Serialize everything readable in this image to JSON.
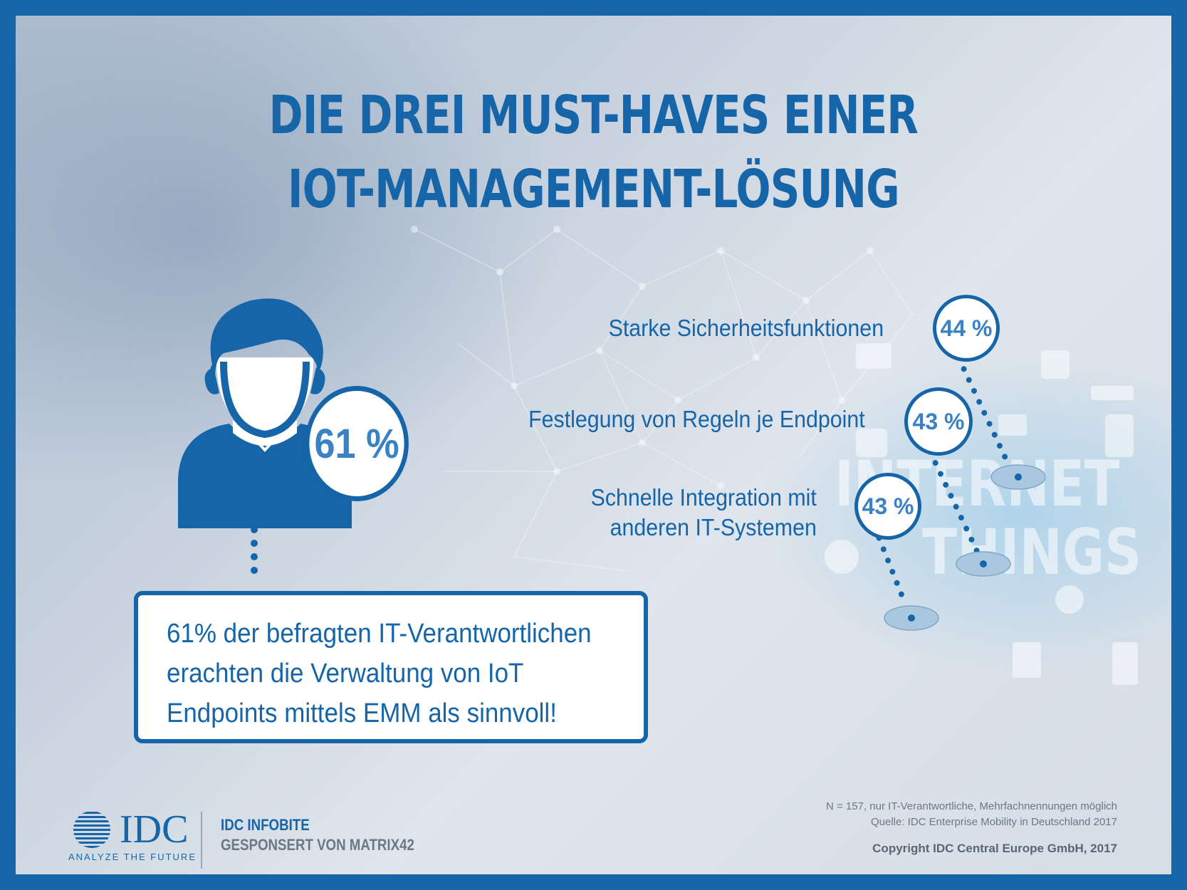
{
  "title": {
    "line1": "DIE DREI MUST-HAVES EINER",
    "line2": "IOT-MANAGEMENT-LÖSUNG"
  },
  "main_stat": {
    "value": "61 %",
    "statement_lines": [
      "61% der befragten IT-Verantwortlichen",
      "erachten die Verwaltung von IoT",
      "Endpoints mittels EMM als sinnvoll!"
    ]
  },
  "features": [
    {
      "label_lines": [
        "Starke Sicherheitsfunktionen"
      ],
      "value": "44 %"
    },
    {
      "label_lines": [
        "Festlegung von Regeln je Endpoint"
      ],
      "value": "43 %"
    },
    {
      "label_lines": [
        "Schnelle Integration mit",
        "anderen IT-Systemen"
      ],
      "value": "43 %"
    }
  ],
  "background": {
    "watermark_line1": "INTERNET",
    "watermark_line2": "THINGS"
  },
  "footer": {
    "logo_text": "IDC",
    "tagline": "ANALYZE THE FUTURE",
    "infobite": "IDC INFOBITE",
    "sponsor": "GESPONSERT VON MATRIX42",
    "sample_note": "N = 157, nur IT-Verantwortliche, Mehrfachnennungen möglich",
    "source": "Quelle: IDC Enterprise Mobility in Deutschland 2017",
    "copyright": "Copyright IDC Central Europe GmbH, 2017"
  },
  "colors": {
    "primary": "#1565a8",
    "accent_text": "#3a82c4",
    "gray_text": "#6d7785",
    "pin": "#a9c7df"
  },
  "icons": [
    "person-icon",
    "idc-globe-icon",
    "location-pin-icon"
  ]
}
